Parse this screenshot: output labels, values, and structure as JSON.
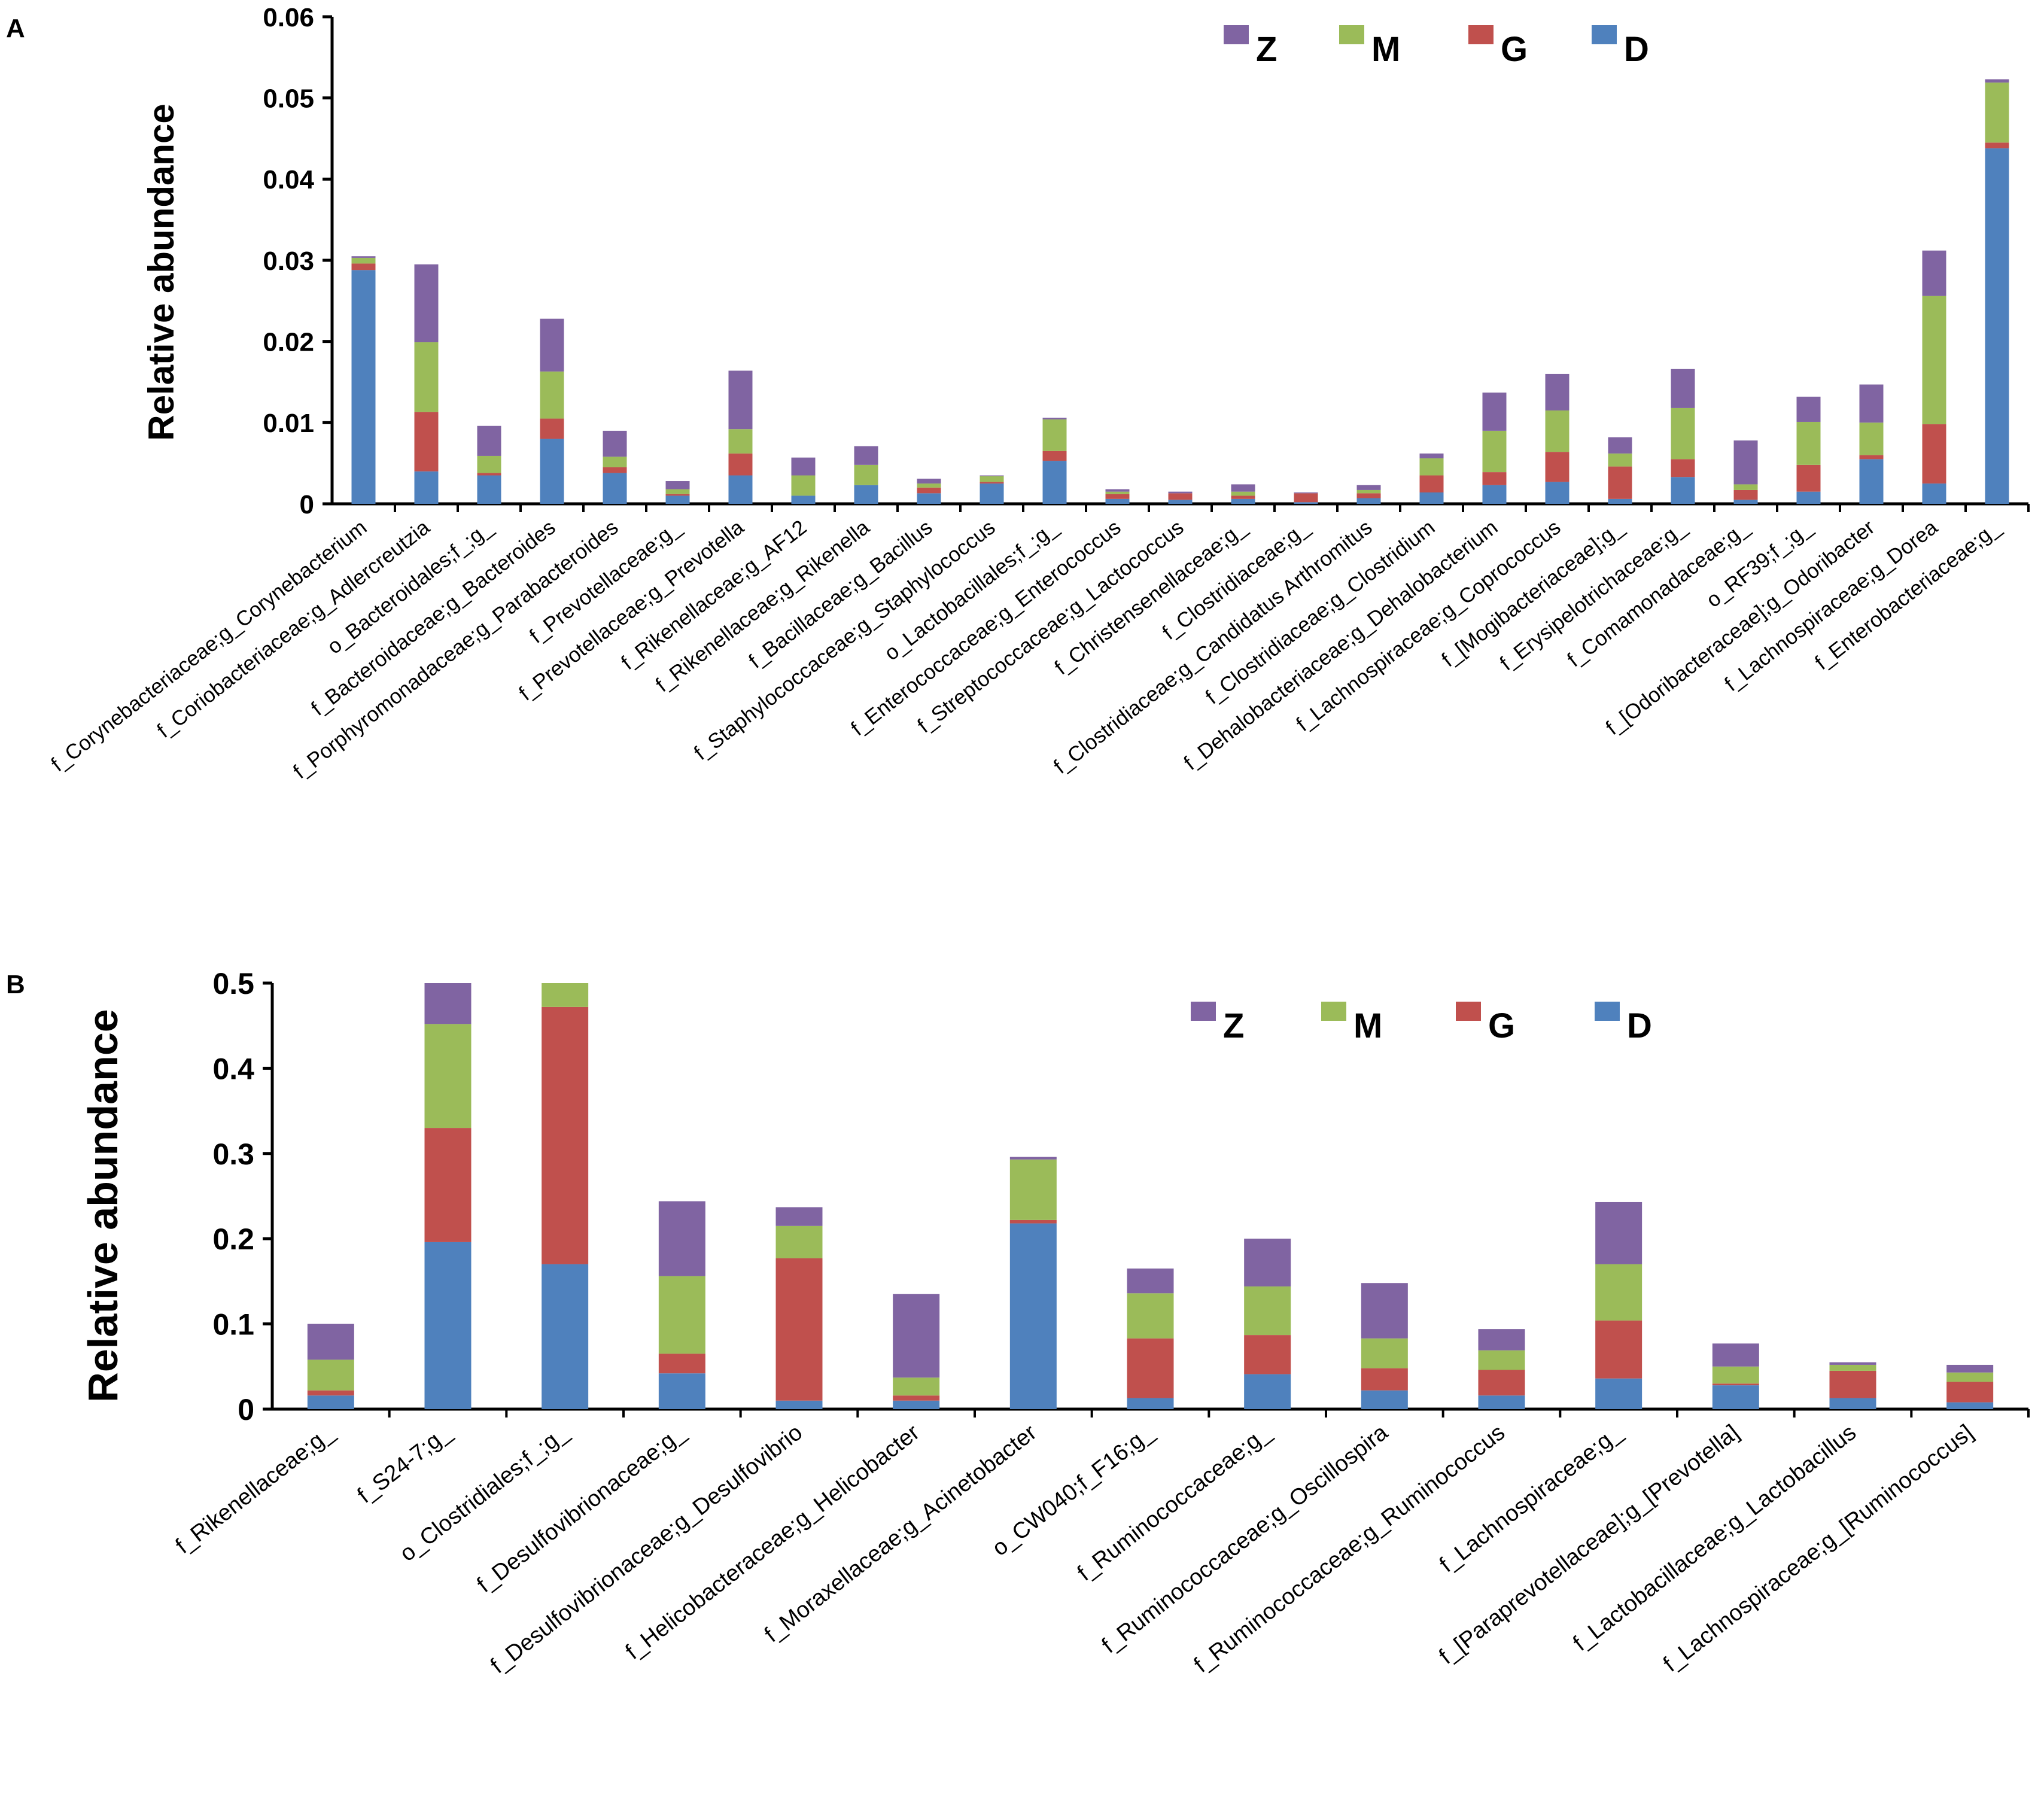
{
  "colors": {
    "Z": "#8064a2",
    "M": "#9bbb59",
    "G": "#c0504d",
    "D": "#4f81bd"
  },
  "chart_data": [
    {
      "panel": "A",
      "type": "bar",
      "stacked": true,
      "ylabel": "Relative abundance",
      "ylim": [
        0,
        0.06
      ],
      "yticks": [
        "0",
        "0.01",
        "0.02",
        "0.03",
        "0.04",
        "0.05",
        "0.06"
      ],
      "legend": [
        "Z",
        "M",
        "G",
        "D"
      ],
      "categories": [
        "f_Corynebacteriaceae;g_Corynebacterium",
        "f_Coriobacteriaceae;g_Adlercreutzia",
        "o_Bacteroidales;f_;g_",
        "f_Bacteroidaceae;g_Bacteroides",
        "f_Porphyromonadaceae;g_Parabacteroides",
        "f_Prevotellaceae;g_",
        "f_Prevotellaceae;g_Prevotella",
        "f_Rikenellaceae;g_AF12",
        "f_Rikenellaceae;g_Rikenella",
        "f_Bacillaceae;g_Bacillus",
        "f_Staphylococcaceae;g_Staphylococcus",
        "o_Lactobacillales;f_;g_",
        "f_Enterococcaceae;g_Enterococcus",
        "f_Streptococcaceae;g_Lactococcus",
        "f_Christensenellaceae;g_",
        "f_Clostridiaceae;g_",
        "f_Clostridiaceae;g_Candidatus Arthromitus",
        "f_Clostridiaceae;g_Clostridium",
        "f_Dehalobacteriaceae;g_Dehalobacterium",
        "f_Lachnospiraceae;g_Coprococcus",
        "f_[Mogibacteriaceae];g_",
        "f_Erysipelotrichaceae;g_",
        "f_Comamonadaceae;g_",
        "o_RF39;f_;g_",
        "f_[Odoribacteraceae];g_Odoribacter",
        "f_Lachnospiraceae;g_Dorea",
        "f_Enterobacteriaceae;g_"
      ],
      "series": [
        {
          "name": "D",
          "values": [
            0.0288,
            0.004,
            0.0035,
            0.008,
            0.0038,
            0.001,
            0.0035,
            0.001,
            0.0023,
            0.0013,
            0.0025,
            0.0053,
            0.0006,
            0.0005,
            0.0006,
            0.0002,
            0.0007,
            0.0014,
            0.0023,
            0.0027,
            0.0006,
            0.0033,
            0.0005,
            0.0015,
            0.0055,
            0.0025,
            0.0438
          ]
        },
        {
          "name": "G",
          "values": [
            0.0008,
            0.0073,
            0.0003,
            0.0025,
            0.0007,
            0.0002,
            0.0027,
            0.0,
            0.0,
            0.0007,
            0.0002,
            0.0012,
            0.0006,
            0.0008,
            0.0004,
            0.0011,
            0.0006,
            0.0021,
            0.0016,
            0.0037,
            0.004,
            0.0022,
            0.0012,
            0.0033,
            0.0005,
            0.0073,
            0.0007
          ]
        },
        {
          "name": "M",
          "values": [
            0.0007,
            0.0086,
            0.0021,
            0.0058,
            0.0013,
            0.0006,
            0.003,
            0.0025,
            0.0025,
            0.0005,
            0.0007,
            0.0039,
            0.0003,
            0.0,
            0.0005,
            0.0,
            0.0004,
            0.0021,
            0.0051,
            0.0051,
            0.0016,
            0.0063,
            0.0007,
            0.0053,
            0.004,
            0.0158,
            0.0074
          ]
        },
        {
          "name": "Z",
          "values": [
            0.0002,
            0.0096,
            0.0037,
            0.0065,
            0.0032,
            0.001,
            0.0072,
            0.0022,
            0.0023,
            0.0006,
            0.0001,
            0.0002,
            0.0003,
            0.0002,
            0.0009,
            0.0001,
            0.0006,
            0.0006,
            0.0047,
            0.0045,
            0.002,
            0.0048,
            0.0054,
            0.0031,
            0.0047,
            0.0056,
            0.0004
          ]
        }
      ]
    },
    {
      "panel": "B",
      "type": "bar",
      "stacked": true,
      "ylabel": "Relative abundance",
      "ylim": [
        0,
        0.5
      ],
      "yticks": [
        "0",
        "0.1",
        "0.2",
        "0.3",
        "0.4",
        "0.5"
      ],
      "legend": [
        "Z",
        "M",
        "G",
        "D"
      ],
      "categories": [
        "f_Rikenellaceae;g_",
        "f_S24-7;g_",
        "o_Clostridiales;f_;g_",
        "f_Desulfovibrionaceae;g_",
        "f_Desulfovibrionaceae;g_Desulfovibrio",
        "f_Helicobacteraceae;g_Helicobacter",
        "f_Moraxellaceae;g_Acinetobacter",
        "o_CW040;f_F16;g_",
        "f_Ruminococcaceae;g_",
        "f_Ruminococcaceae;g_Oscillospira",
        "f_Ruminococcaceae;g_Ruminococcus",
        "f_Lachnospiraceae;g_",
        "f_[Paraprevotellaceae];g_[Prevotella]",
        "f_Lactobacillaceae;g_Lactobacillus",
        "f_Lachnospiraceae;g_[Ruminococcus]"
      ],
      "series": [
        {
          "name": "D",
          "values": [
            0.016,
            0.196,
            0.17,
            0.042,
            0.01,
            0.01,
            0.218,
            0.013,
            0.041,
            0.022,
            0.016,
            0.036,
            0.028,
            0.013,
            0.008
          ]
        },
        {
          "name": "G",
          "values": [
            0.006,
            0.134,
            0.302,
            0.023,
            0.167,
            0.006,
            0.004,
            0.07,
            0.046,
            0.026,
            0.03,
            0.068,
            0.002,
            0.032,
            0.024
          ]
        },
        {
          "name": "M",
          "values": [
            0.036,
            0.122,
            0.028,
            0.091,
            0.038,
            0.021,
            0.071,
            0.053,
            0.057,
            0.035,
            0.023,
            0.066,
            0.02,
            0.007,
            0.011
          ]
        },
        {
          "name": "Z",
          "values": [
            0.042,
            0.048,
            0.0,
            0.088,
            0.022,
            0.098,
            0.003,
            0.029,
            0.056,
            0.065,
            0.025,
            0.073,
            0.027,
            0.003,
            0.009
          ]
        }
      ]
    }
  ]
}
